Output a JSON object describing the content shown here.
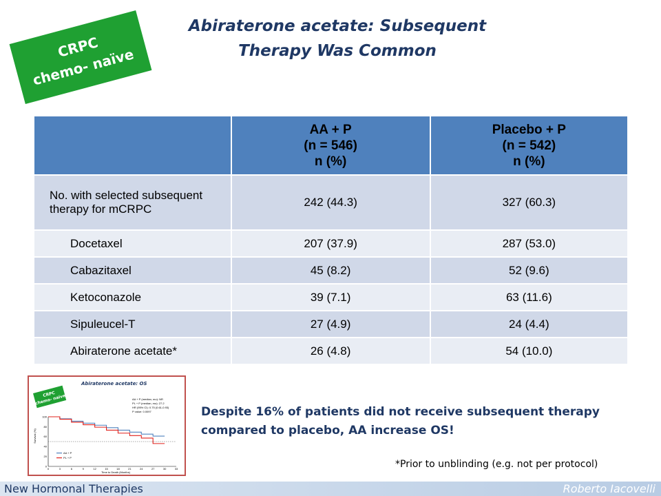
{
  "badge": {
    "line1": "CRPC",
    "line2": "chemo- naïve"
  },
  "title": {
    "line1": "Abiraterone acetate: Subsequent",
    "line2": "Therapy Was Common"
  },
  "table": {
    "headers": [
      {
        "lines": []
      },
      {
        "lines": [
          "AA + P",
          "(n = 546)",
          "n (%)"
        ]
      },
      {
        "lines": [
          "Placebo + P",
          "(n = 542)",
          "n (%)"
        ]
      }
    ],
    "rows": [
      {
        "label": "No. with selected subsequent therapy for mCRPC",
        "aa": "242 (44.3)",
        "placebo": "327 (60.3)"
      },
      {
        "label": "Docetaxel",
        "aa": "207 (37.9)",
        "placebo": "287 (53.0)"
      },
      {
        "label": "Cabazitaxel",
        "aa": "45 (8.2)",
        "placebo": "52 (9.6)"
      },
      {
        "label": "Ketoconazole",
        "aa": "39 (7.1)",
        "placebo": "63 (11.6)"
      },
      {
        "label": "Sipuleucel-T",
        "aa": "27 (4.9)",
        "placebo": "24 (4.4)"
      },
      {
        "label": "Abiraterone acetate*",
        "aa": "26 (4.8)",
        "placebo": "54 (10.0)"
      }
    ]
  },
  "thumbnail": {
    "badge_line1": "CRPC",
    "badge_line2": "chemo- naïve",
    "title": "Abiraterone acetate: OS",
    "stats": [
      "AA + P (median, mo): NR",
      "PL + P (median, mo): 27.2",
      "HR (95% CI): 0.75 (0.61-0.93)",
      "P value: 0.0097"
    ],
    "ylabel": "Survival (%)",
    "xlabel": "Time to Death (Months)",
    "yticks": [
      "100",
      "80",
      "60",
      "40",
      "20",
      "0"
    ],
    "xticks": [
      "0",
      "3",
      "6",
      "9",
      "12",
      "15",
      "18",
      "21",
      "24",
      "27",
      "30",
      "33"
    ],
    "legend": [
      "AA + P",
      "PL + P"
    ],
    "colors": {
      "aa": "#4f81bd",
      "pl": "#e0201b",
      "median_line": "#555555"
    },
    "chart_data": {
      "type": "line",
      "xlim": [
        0,
        33
      ],
      "ylim": [
        0,
        100
      ],
      "series": [
        {
          "name": "AA + P",
          "x": [
            0,
            3,
            6,
            9,
            12,
            15,
            18,
            21,
            24,
            27,
            30
          ],
          "y": [
            100,
            96,
            91,
            87,
            83,
            78,
            73,
            69,
            65,
            61,
            61
          ]
        },
        {
          "name": "PL + P",
          "x": [
            0,
            3,
            6,
            9,
            12,
            15,
            18,
            21,
            24,
            27,
            30
          ],
          "y": [
            100,
            95,
            89,
            84,
            79,
            73,
            67,
            62,
            57,
            46,
            46
          ]
        }
      ],
      "median_line_y": 50
    }
  },
  "takeaway": {
    "line1": "Despite 16% of patients did not receive subsequent therapy",
    "line2": "compared to placebo, AA increase OS!"
  },
  "footnote": "*Prior to unblinding (e.g. not per protocol)",
  "footer": {
    "left": "New Hormonal Therapies",
    "right": "Roberto Iacovelli"
  }
}
